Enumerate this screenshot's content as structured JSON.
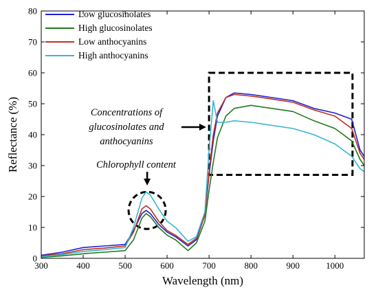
{
  "chart_data": {
    "type": "line",
    "xlabel": "Wavelength (nm)",
    "ylabel": "Reflectance (%)",
    "xlim": [
      300,
      1070
    ],
    "ylim": [
      0,
      80
    ],
    "x_ticks": [
      300,
      400,
      500,
      600,
      700,
      800,
      900,
      1000
    ],
    "y_ticks": [
      0,
      10,
      20,
      30,
      40,
      50,
      60,
      70,
      80
    ],
    "x_tick_labels": [
      "300",
      "400",
      "500",
      "600",
      "700",
      "800",
      "900",
      "1000"
    ],
    "y_tick_labels": [
      "0",
      "10",
      "20",
      "30",
      "40",
      "50",
      "60",
      "70",
      "80"
    ],
    "grid": false,
    "legend_position": "top-left",
    "x": [
      300,
      350,
      400,
      450,
      500,
      520,
      540,
      550,
      560,
      580,
      600,
      620,
      650,
      670,
      690,
      700,
      710,
      720,
      740,
      760,
      800,
      850,
      900,
      950,
      1000,
      1040,
      1060,
      1070
    ],
    "series": [
      {
        "name": "Low glucosinolates",
        "color": "#1f1fd4",
        "values": [
          1,
          2,
          3.5,
          4,
          4.5,
          9,
          14.5,
          15.5,
          14.5,
          11,
          8.5,
          7,
          4,
          6,
          14,
          27,
          38,
          46,
          52,
          53.5,
          53,
          52,
          51,
          48.5,
          47,
          45,
          35,
          33
        ]
      },
      {
        "name": "High glucosinolates",
        "color": "#1f7a1f",
        "values": [
          0.3,
          0.8,
          1.5,
          2,
          2.5,
          6,
          13,
          14.5,
          13.5,
          10,
          7.5,
          6,
          2.5,
          5,
          12,
          22,
          31,
          39,
          46,
          48.5,
          49.5,
          48.5,
          47.5,
          44.5,
          42,
          38,
          32,
          30
        ]
      },
      {
        "name": "Low anthocyanins",
        "color": "#c03020",
        "values": [
          0.8,
          1.5,
          2.8,
          3.3,
          4,
          8.5,
          16,
          17,
          16,
          12,
          9,
          7.5,
          4.5,
          6.5,
          14,
          28,
          40,
          47,
          52,
          53,
          52.5,
          51.5,
          50.5,
          48,
          46,
          42,
          34,
          32
        ]
      },
      {
        "name": "High anthocyanins",
        "color": "#38b4d4",
        "values": [
          0.5,
          1.2,
          2.2,
          2.8,
          3.5,
          10,
          19.5,
          21.5,
          20.5,
          16,
          12,
          10,
          5.5,
          7,
          15,
          35,
          51,
          44,
          44,
          44.5,
          44,
          43,
          42,
          40,
          37,
          33,
          29,
          28
        ]
      }
    ],
    "annotations": [
      {
        "label_lines": [
          "Concentrations of",
          "glucosinolates and",
          "anthocyanins"
        ],
        "style": "dashed-rectangle",
        "region_x": [
          700,
          1042
        ],
        "region_y": [
          27,
          60
        ]
      },
      {
        "label_lines": [
          "Chlorophyll content"
        ],
        "style": "dashed-circle",
        "region_x": [
          515,
          590
        ],
        "region_y": [
          10,
          21
        ]
      }
    ]
  }
}
